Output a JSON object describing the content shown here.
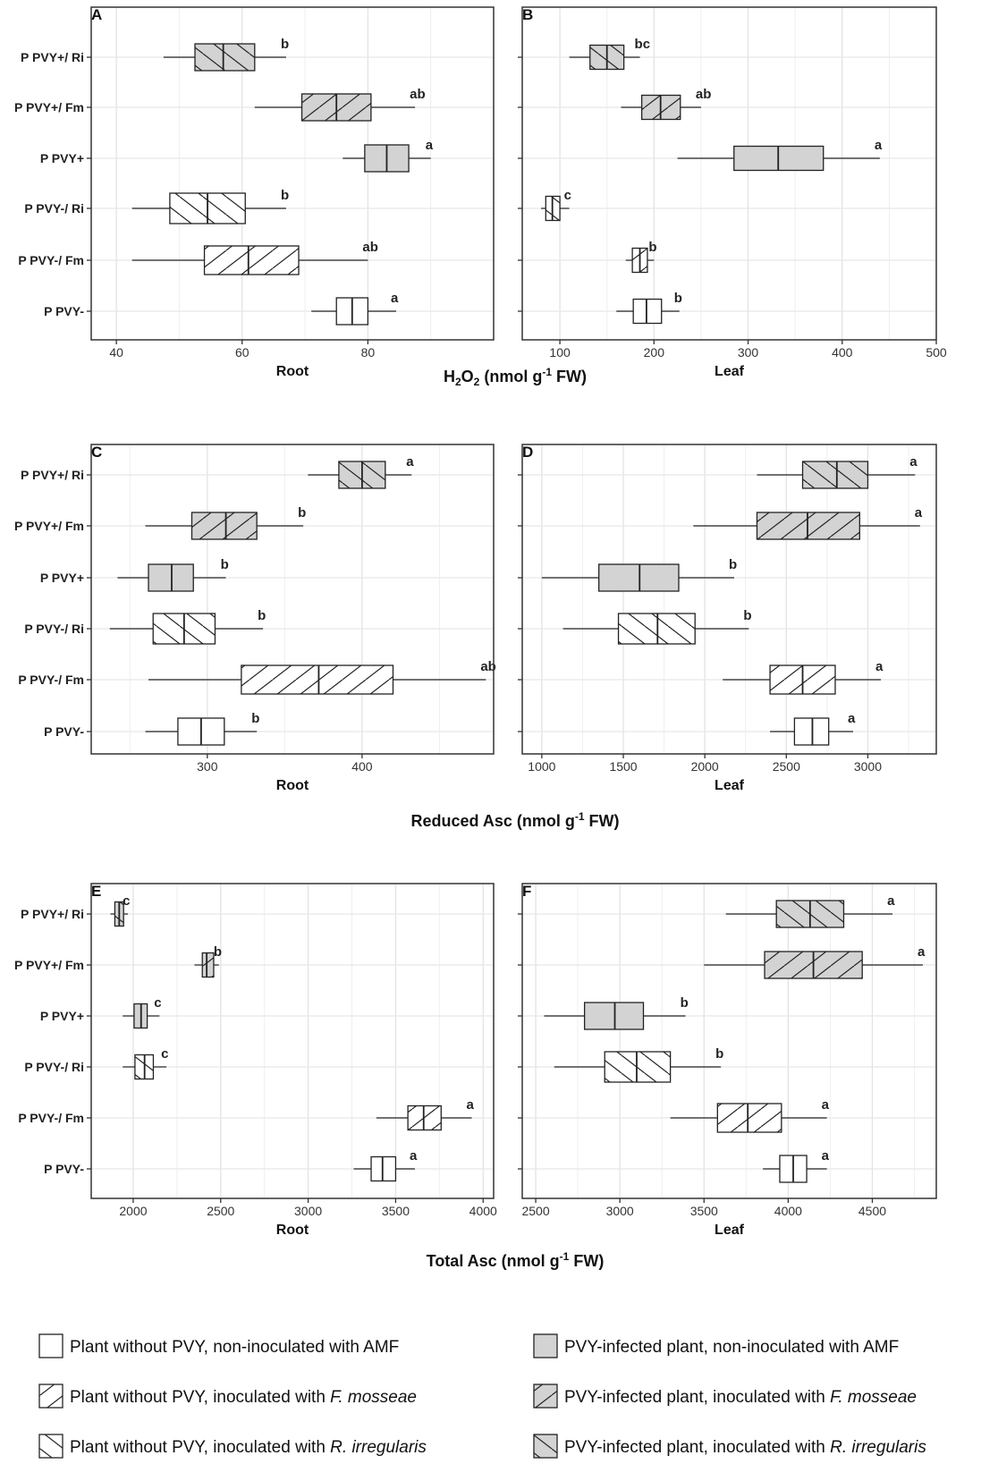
{
  "figure": {
    "groups": [
      "P PVY+/ Ri",
      "P PVY+/ Fm",
      "P PVY+",
      "P PVY-/ Ri",
      "P PVY-/ Fm",
      "P PVY-"
    ],
    "styles": {
      "P PVY+/ Ri": {
        "fill": "#d3d3d3",
        "hatch": "back"
      },
      "P PVY+/ Fm": {
        "fill": "#d3d3d3",
        "hatch": "fwd"
      },
      "P PVY+": {
        "fill": "#d3d3d3",
        "hatch": "none"
      },
      "P PVY-/ Ri": {
        "fill": "#ffffff",
        "hatch": "back"
      },
      "P PVY-/ Fm": {
        "fill": "#ffffff",
        "hatch": "fwd"
      },
      "P PVY-": {
        "fill": "#ffffff",
        "hatch": "none"
      }
    },
    "row_titles": [
      {
        "row": 0,
        "pre": "H",
        "sub1": "2",
        "mid": "O",
        "sub2": "2",
        "post": " (nmol g",
        "sup": "-1",
        "end": "  FW)"
      },
      {
        "row": 1,
        "pre": "Reduced Asc (nmol g",
        "sup": "-1",
        "end": " FW)"
      },
      {
        "row": 2,
        "pre": "Total Asc (nmol g",
        "sup": "-1",
        "end": " FW)"
      }
    ]
  },
  "chart_data": [
    {
      "type": "box",
      "panel": "A",
      "row": 0,
      "col": 0,
      "xlabel": "Root",
      "xlim": [
        36,
        100
      ],
      "ticks": [
        40,
        60,
        80
      ],
      "boxes": [
        {
          "group": "P PVY+/ Ri",
          "min": 47.5,
          "q1": 52.5,
          "median": 57,
          "q3": 62,
          "max": 67,
          "letter": "b"
        },
        {
          "group": "P PVY+/ Fm",
          "min": 62,
          "q1": 69.5,
          "median": 75,
          "q3": 80.5,
          "max": 87.5,
          "letter": "ab"
        },
        {
          "group": "P PVY+",
          "min": 76,
          "q1": 79.5,
          "median": 83,
          "q3": 86.5,
          "max": 90,
          "letter": "a"
        },
        {
          "group": "P PVY-/ Ri",
          "min": 42.5,
          "q1": 48.5,
          "median": 54.5,
          "q3": 60.5,
          "max": 67,
          "letter": "b"
        },
        {
          "group": "P PVY-/ Fm",
          "min": 42.5,
          "q1": 54,
          "median": 61,
          "q3": 69,
          "max": 80,
          "letter": "ab"
        },
        {
          "group": "P PVY-",
          "min": 71,
          "q1": 75,
          "median": 77.5,
          "q3": 80,
          "max": 84.5,
          "letter": "a"
        }
      ]
    },
    {
      "type": "box",
      "panel": "B",
      "row": 0,
      "col": 1,
      "xlabel": "Leaf",
      "xlim": [
        60,
        500
      ],
      "ticks": [
        100,
        200,
        300,
        400,
        500
      ],
      "boxes": [
        {
          "group": "P PVY+/ Ri",
          "min": 110,
          "q1": 132,
          "median": 150,
          "q3": 168,
          "max": 185,
          "letter": "bc"
        },
        {
          "group": "P PVY+/ Fm",
          "min": 165,
          "q1": 187,
          "median": 207,
          "q3": 228,
          "max": 250,
          "letter": "ab"
        },
        {
          "group": "P PVY+",
          "min": 225,
          "q1": 285,
          "median": 332,
          "q3": 380,
          "max": 440,
          "letter": "a"
        },
        {
          "group": "P PVY-/ Ri",
          "min": 80,
          "q1": 85,
          "median": 92,
          "q3": 100,
          "max": 110,
          "letter": "c"
        },
        {
          "group": "P PVY-/ Fm",
          "min": 170,
          "q1": 177,
          "median": 185,
          "q3": 193,
          "max": 200,
          "letter": "b"
        },
        {
          "group": "P PVY-",
          "min": 160,
          "q1": 178,
          "median": 192,
          "q3": 208,
          "max": 227,
          "letter": "b"
        }
      ]
    },
    {
      "type": "box",
      "panel": "C",
      "row": 1,
      "col": 0,
      "xlabel": "Root",
      "xlim": [
        225,
        485
      ],
      "ticks": [
        300,
        400
      ],
      "boxes": [
        {
          "group": "P PVY+/ Ri",
          "min": 365,
          "q1": 385,
          "median": 400,
          "q3": 415,
          "max": 432,
          "letter": "a"
        },
        {
          "group": "P PVY+/ Fm",
          "min": 260,
          "q1": 290,
          "median": 312,
          "q3": 332,
          "max": 362,
          "letter": "b"
        },
        {
          "group": "P PVY+",
          "min": 242,
          "q1": 262,
          "median": 277,
          "q3": 291,
          "max": 312,
          "letter": "b"
        },
        {
          "group": "P PVY-/ Ri",
          "min": 237,
          "q1": 265,
          "median": 285,
          "q3": 305,
          "max": 336,
          "letter": "b"
        },
        {
          "group": "P PVY-/ Fm",
          "min": 262,
          "q1": 322,
          "median": 372,
          "q3": 420,
          "max": 480,
          "letter": "ab"
        },
        {
          "group": "P PVY-",
          "min": 260,
          "q1": 281,
          "median": 296,
          "q3": 311,
          "max": 332,
          "letter": "b"
        }
      ]
    },
    {
      "type": "box",
      "panel": "D",
      "row": 1,
      "col": 1,
      "xlabel": "Leaf",
      "xlim": [
        880,
        3420
      ],
      "ticks": [
        1000,
        1500,
        2000,
        2500,
        3000
      ],
      "boxes": [
        {
          "group": "P PVY+/ Ri",
          "min": 2320,
          "q1": 2600,
          "median": 2810,
          "q3": 3000,
          "max": 3290,
          "letter": "a"
        },
        {
          "group": "P PVY+/ Fm",
          "min": 1930,
          "q1": 2320,
          "median": 2630,
          "q3": 2950,
          "max": 3320,
          "letter": "a"
        },
        {
          "group": "P PVY+",
          "min": 1000,
          "q1": 1350,
          "median": 1600,
          "q3": 1840,
          "max": 2180,
          "letter": "b"
        },
        {
          "group": "P PVY-/ Ri",
          "min": 1130,
          "q1": 1470,
          "median": 1710,
          "q3": 1940,
          "max": 2270,
          "letter": "b"
        },
        {
          "group": "P PVY-/ Fm",
          "min": 2110,
          "q1": 2400,
          "median": 2600,
          "q3": 2800,
          "max": 3080,
          "letter": "a"
        },
        {
          "group": "P PVY-",
          "min": 2400,
          "q1": 2550,
          "median": 2660,
          "q3": 2760,
          "max": 2910,
          "letter": "a"
        }
      ]
    },
    {
      "type": "box",
      "panel": "E",
      "row": 2,
      "col": 0,
      "xlabel": "Root",
      "xlim": [
        1760,
        4060
      ],
      "ticks": [
        2000,
        2500,
        3000,
        3500,
        4000
      ],
      "boxes": [
        {
          "group": "P PVY+/ Ri",
          "min": 1870,
          "q1": 1895,
          "median": 1920,
          "q3": 1945,
          "max": 1970,
          "letter": "c"
        },
        {
          "group": "P PVY+/ Fm",
          "min": 2350,
          "q1": 2395,
          "median": 2420,
          "q3": 2460,
          "max": 2490,
          "letter": "b"
        },
        {
          "group": "P PVY+",
          "min": 1940,
          "q1": 2005,
          "median": 2045,
          "q3": 2080,
          "max": 2150,
          "letter": "c"
        },
        {
          "group": "P PVY-/ Ri",
          "min": 1940,
          "q1": 2010,
          "median": 2065,
          "q3": 2115,
          "max": 2190,
          "letter": "c"
        },
        {
          "group": "P PVY-/ Fm",
          "min": 3390,
          "q1": 3570,
          "median": 3660,
          "q3": 3760,
          "max": 3935,
          "letter": "a"
        },
        {
          "group": "P PVY-",
          "min": 3260,
          "q1": 3360,
          "median": 3425,
          "q3": 3500,
          "max": 3610,
          "letter": "a"
        }
      ]
    },
    {
      "type": "box",
      "panel": "F",
      "row": 2,
      "col": 1,
      "xlabel": "Leaf",
      "xlim": [
        2420,
        4880
      ],
      "ticks": [
        2500,
        3000,
        3500,
        4000,
        4500
      ],
      "boxes": [
        {
          "group": "P PVY+/ Ri",
          "min": 3630,
          "q1": 3930,
          "median": 4130,
          "q3": 4330,
          "max": 4620,
          "letter": "a"
        },
        {
          "group": "P PVY+/ Fm",
          "min": 3500,
          "q1": 3860,
          "median": 4150,
          "q3": 4440,
          "max": 4800,
          "letter": "a"
        },
        {
          "group": "P PVY+",
          "min": 2550,
          "q1": 2790,
          "median": 2970,
          "q3": 3140,
          "max": 3390,
          "letter": "b"
        },
        {
          "group": "P PVY-/ Ri",
          "min": 2610,
          "q1": 2910,
          "median": 3100,
          "q3": 3300,
          "max": 3600,
          "letter": "b"
        },
        {
          "group": "P PVY-/ Fm",
          "min": 3300,
          "q1": 3580,
          "median": 3760,
          "q3": 3960,
          "max": 4230,
          "letter": "a"
        },
        {
          "group": "P PVY-",
          "min": 3850,
          "q1": 3950,
          "median": 4030,
          "q3": 4110,
          "max": 4230,
          "letter": "a"
        }
      ]
    }
  ],
  "legend": [
    {
      "group": "P PVY-",
      "text": "Plant without PVY, non-inoculated with AMF",
      "italic": ""
    },
    {
      "group": "P PVY-/ Fm",
      "text": "Plant without PVY, inoculated with ",
      "italic": "F. mosseae"
    },
    {
      "group": "P PVY-/ Ri",
      "text": "Plant without PVY, inoculated with ",
      "italic": "R. irregularis"
    },
    {
      "group": "P PVY+",
      "text": "PVY-infected plant, non-inoculated with AMF",
      "italic": ""
    },
    {
      "group": "P PVY+/ Fm",
      "text": "PVY-infected plant, inoculated with ",
      "italic": "F. mosseae"
    },
    {
      "group": "P PVY+/ Ri",
      "text": "PVY-infected plant, inoculated with ",
      "italic": "R. irregularis"
    }
  ]
}
